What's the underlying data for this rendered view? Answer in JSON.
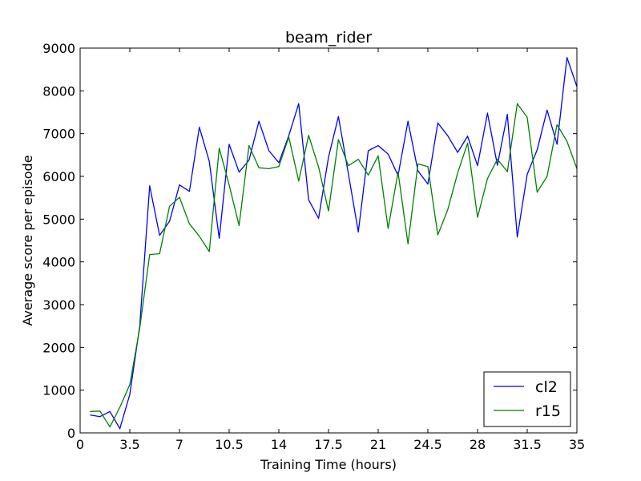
{
  "chart_data": {
    "type": "line",
    "title": "beam_rider",
    "xlabel": "Training Time (hours)",
    "ylabel": "Average score per episode",
    "xlim": [
      0,
      35
    ],
    "ylim": [
      0,
      9000
    ],
    "xticks": [
      0,
      3.5,
      7,
      10.5,
      14,
      17.5,
      21,
      24.5,
      28,
      31.5,
      35
    ],
    "xtick_labels": [
      "0",
      "3.5",
      "7",
      "10.5",
      "14",
      "17.5",
      "21",
      "24.5",
      "28",
      "31.5",
      "35"
    ],
    "yticks": [
      0,
      1000,
      2000,
      3000,
      4000,
      5000,
      6000,
      7000,
      8000,
      9000
    ],
    "ytick_labels": [
      "0",
      "1000",
      "2000",
      "3000",
      "4000",
      "5000",
      "6000",
      "7000",
      "8000",
      "9000"
    ],
    "grid": false,
    "legend_position": "bottom-right",
    "series": [
      {
        "name": "cl2",
        "color": "#0000ff",
        "x": [
          0.7,
          1.4,
          2.1,
          2.8,
          3.5,
          4.2,
          4.9,
          5.6,
          6.3,
          7.0,
          7.7,
          8.4,
          9.1,
          9.8,
          10.5,
          11.2,
          11.9,
          12.6,
          13.3,
          14.0,
          14.7,
          15.4,
          16.1,
          16.8,
          17.5,
          18.2,
          18.9,
          19.6,
          20.3,
          21.0,
          21.7,
          22.4,
          23.1,
          23.8,
          24.5,
          25.2,
          25.9,
          26.6,
          27.3,
          28.0,
          28.7,
          29.4,
          30.1,
          30.8,
          31.5,
          32.2,
          32.9,
          33.6,
          34.3,
          35.0
        ],
        "y": [
          420,
          380,
          500,
          100,
          900,
          2500,
          5780,
          4620,
          4950,
          5800,
          5650,
          7150,
          6350,
          4550,
          6750,
          6100,
          6380,
          7290,
          6600,
          6320,
          6950,
          7700,
          5450,
          5020,
          6450,
          7400,
          6060,
          4700,
          6600,
          6720,
          6520,
          6020,
          7290,
          6130,
          5820,
          7250,
          6950,
          6560,
          6940,
          6250,
          7480,
          6260,
          7450,
          4580,
          6050,
          6620,
          7550,
          6750,
          8780,
          8100
        ]
      },
      {
        "name": "r15",
        "color": "#008000",
        "x": [
          0.7,
          1.4,
          2.1,
          2.8,
          3.5,
          4.2,
          4.9,
          5.6,
          6.3,
          7.0,
          7.7,
          8.4,
          9.1,
          9.8,
          10.5,
          11.2,
          11.9,
          12.6,
          13.3,
          14.0,
          14.7,
          15.4,
          16.1,
          16.8,
          17.5,
          18.2,
          18.9,
          19.6,
          20.3,
          21.0,
          21.7,
          22.4,
          23.1,
          23.8,
          24.5,
          25.2,
          25.9,
          26.6,
          27.3,
          28.0,
          28.7,
          29.4,
          30.1,
          30.8,
          31.5,
          32.2,
          32.9,
          33.6,
          34.3,
          35.0
        ],
        "y": [
          500,
          510,
          140,
          600,
          1130,
          2450,
          4170,
          4190,
          5300,
          5510,
          4890,
          4600,
          4240,
          6660,
          5800,
          4850,
          6720,
          6200,
          6180,
          6230,
          6920,
          5890,
          6960,
          6220,
          5190,
          6860,
          6250,
          6400,
          6030,
          6480,
          4780,
          6100,
          4420,
          6290,
          6230,
          4630,
          5220,
          6080,
          6780,
          5040,
          5950,
          6400,
          6110,
          7700,
          7380,
          5630,
          6000,
          7210,
          6820,
          6180
        ]
      }
    ]
  }
}
